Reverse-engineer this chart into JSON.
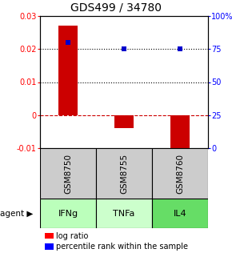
{
  "title": "GDS499 / 34780",
  "samples": [
    "GSM8750",
    "GSM8755",
    "GSM8760"
  ],
  "agents": [
    "IFNg",
    "TNFa",
    "IL4"
  ],
  "log_ratios": [
    0.027,
    -0.004,
    -0.011
  ],
  "percentile_ranks": [
    0.8,
    0.75,
    0.75
  ],
  "ylim_left": [
    -0.01,
    0.03
  ],
  "ylim_right": [
    0.0,
    1.0
  ],
  "yticks_left": [
    -0.01,
    0.0,
    0.01,
    0.02,
    0.03
  ],
  "ytick_labels_left": [
    "-0.01",
    "0",
    "0.01",
    "0.02",
    "0.03"
  ],
  "yticks_right": [
    0.0,
    0.25,
    0.5,
    0.75,
    1.0
  ],
  "ytick_labels_right": [
    "0",
    "25",
    "50",
    "75",
    "100%"
  ],
  "bar_color": "#cc0000",
  "dot_color": "#0000cc",
  "agent_colors": [
    "#bbffbb",
    "#ccffcc",
    "#66dd66"
  ],
  "sample_bg_color": "#cccccc",
  "title_fontsize": 10,
  "axis_fontsize": 7,
  "legend_fontsize": 7,
  "bar_width": 0.35
}
